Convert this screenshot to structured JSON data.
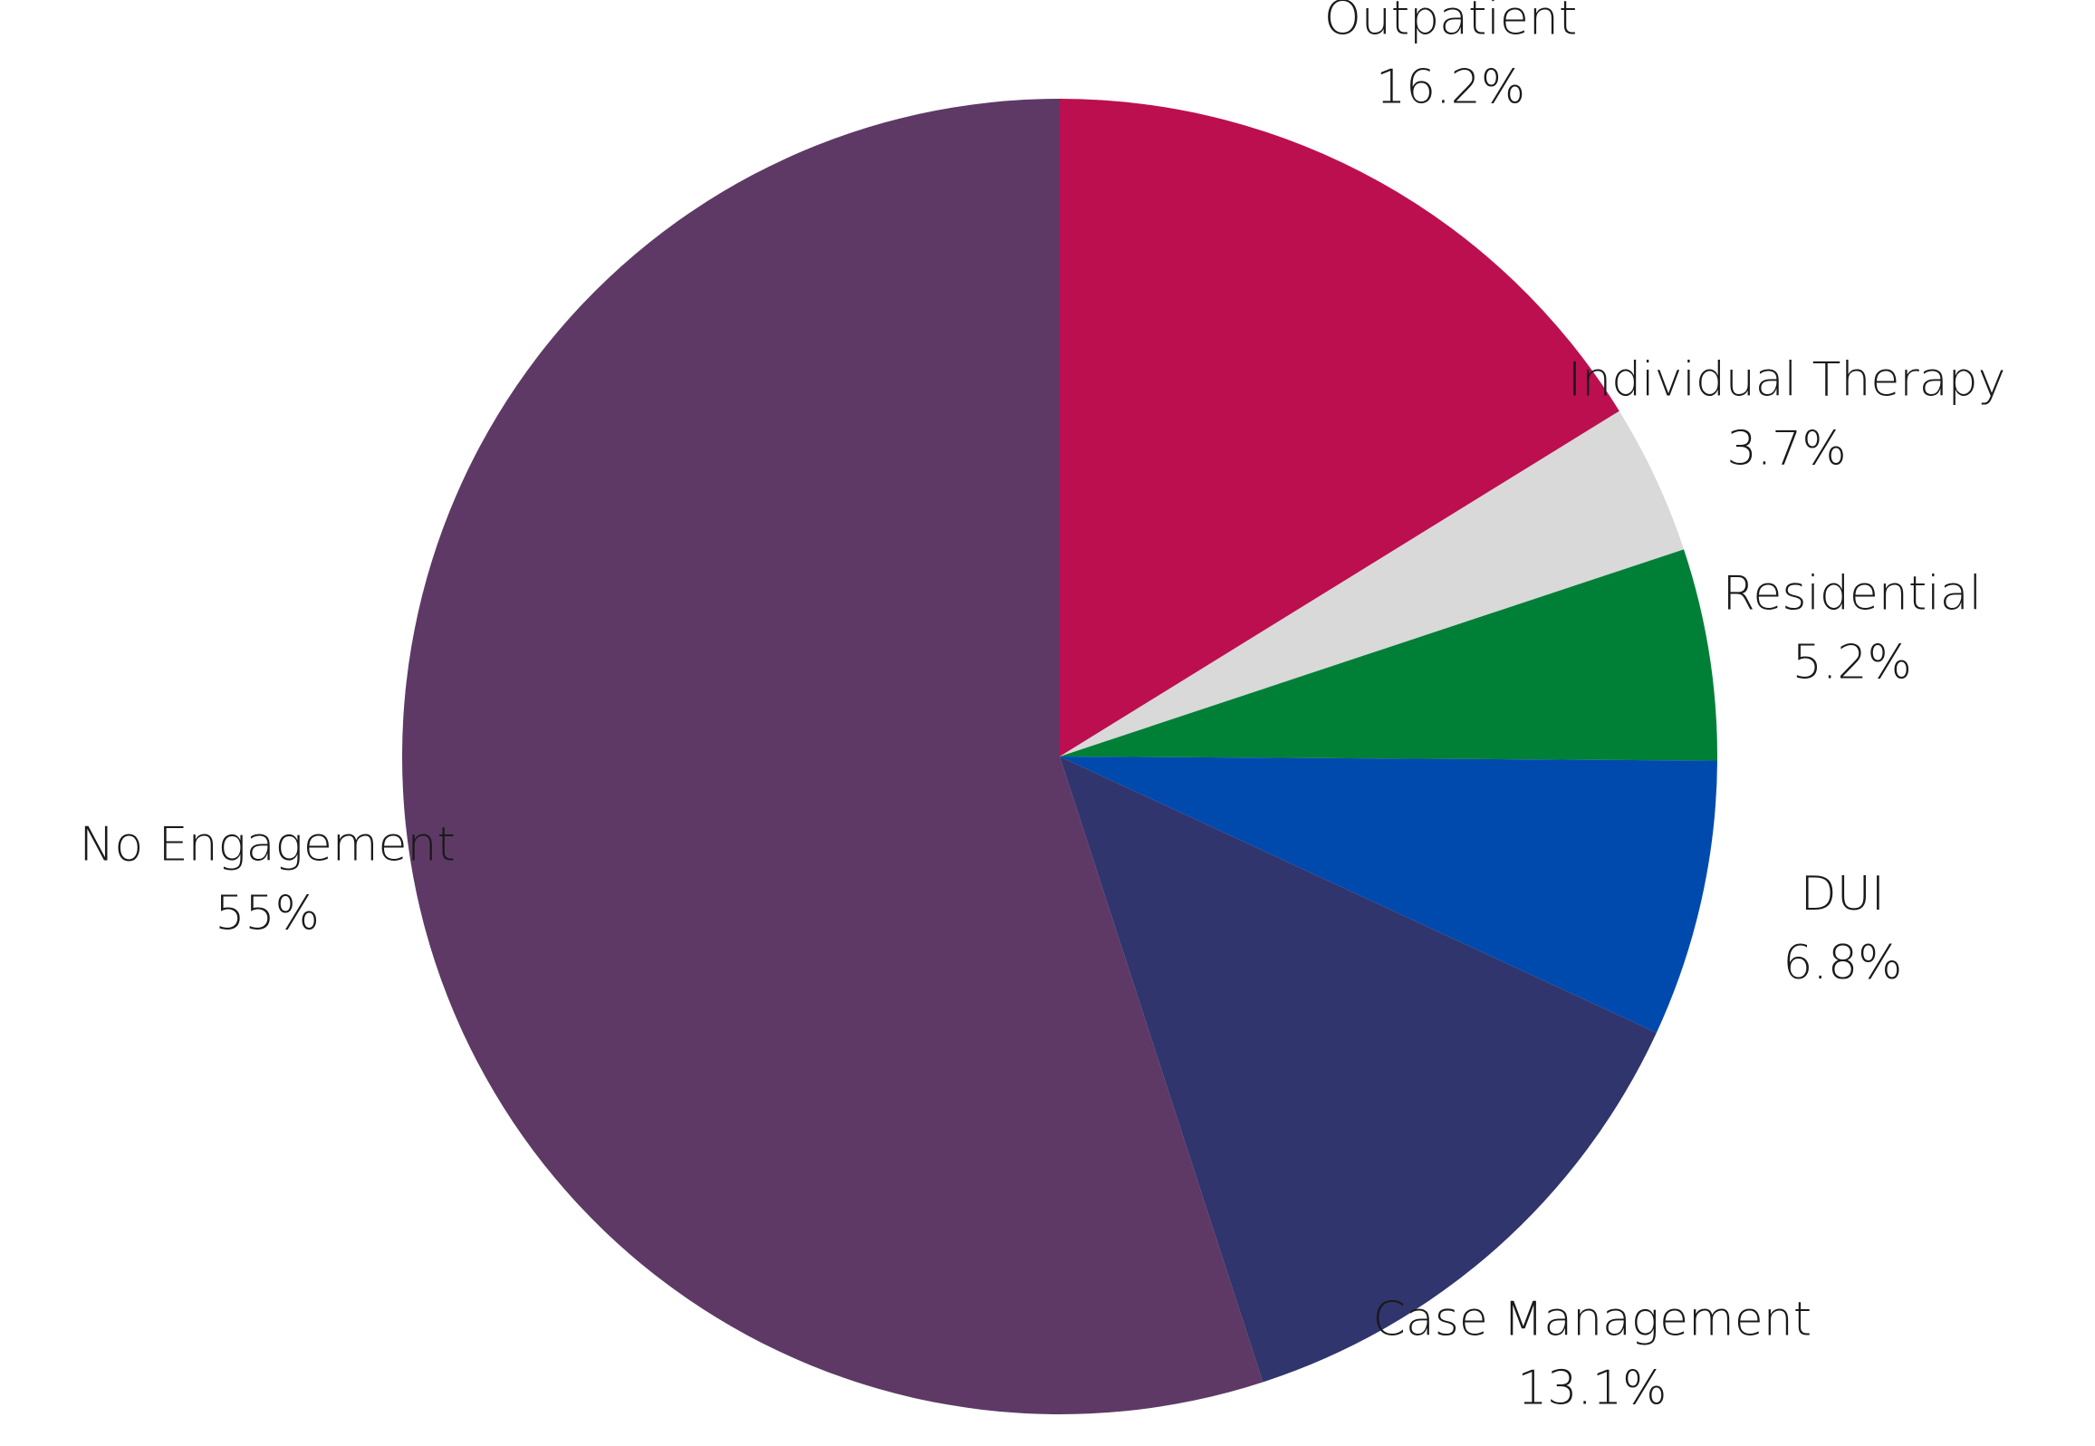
{
  "chart_data": {
    "type": "pie",
    "categories": [
      "Outpatient",
      "Individual Therapy",
      "Residential",
      "DUI",
      "Case Management",
      "No Engagement"
    ],
    "values": [
      16.2,
      3.7,
      5.2,
      6.8,
      13.1,
      55
    ],
    "value_labels": [
      "16.2%",
      "3.7%",
      "5.2%",
      "6.8%",
      "13.1%",
      "55%"
    ],
    "colors": [
      "#bc0f50",
      "#d9d9d9",
      "#008037",
      "#004aad",
      "#31356e",
      "#5e3966"
    ]
  }
}
